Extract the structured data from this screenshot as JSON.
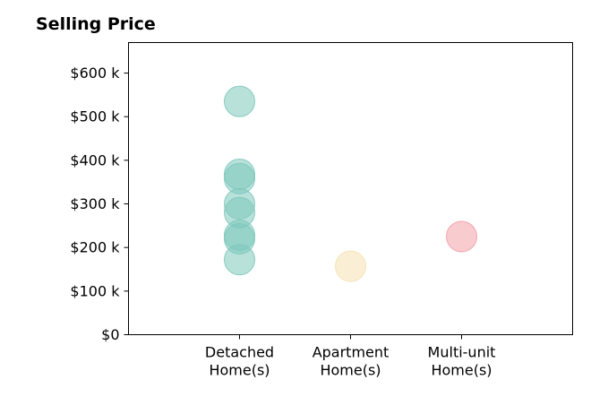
{
  "chart_data": {
    "type": "scatter",
    "title": "Selling Price",
    "xlabel": "",
    "ylabel": "",
    "ylim": [
      0,
      670
    ],
    "y_ticks": [
      {
        "value": 0,
        "label": "$0"
      },
      {
        "value": 100,
        "label": "$100 k"
      },
      {
        "value": 200,
        "label": "$200 k"
      },
      {
        "value": 300,
        "label": "$300 k"
      },
      {
        "value": 400,
        "label": "$400 k"
      },
      {
        "value": 500,
        "label": "$500 k"
      },
      {
        "value": 600,
        "label": "$600 k"
      }
    ],
    "categories": [
      {
        "lines": [
          "Detached",
          "Home(s)"
        ]
      },
      {
        "lines": [
          "Apartment",
          "Home(s)"
        ]
      },
      {
        "lines": [
          "Multi-unit",
          "Home(s)"
        ]
      }
    ],
    "grid": false,
    "legend": "none",
    "series": [
      {
        "category_index": 0,
        "color": "#7ec8bb",
        "values": [
          535,
          368,
          358,
          300,
          280,
          228,
          220,
          172
        ]
      },
      {
        "category_index": 1,
        "color": "#f6e2b3",
        "values": [
          157
        ]
      },
      {
        "category_index": 2,
        "color": "#f2a0a8",
        "values": [
          225
        ]
      }
    ]
  }
}
